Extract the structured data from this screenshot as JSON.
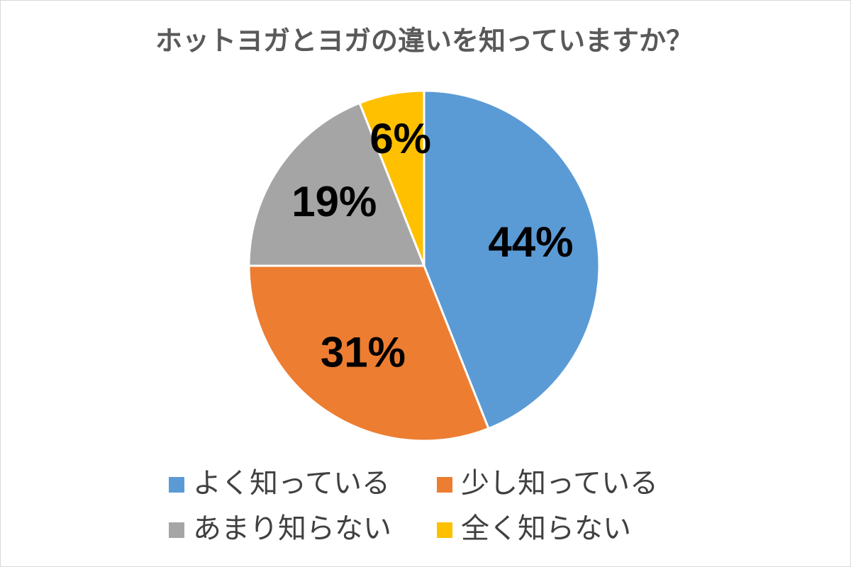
{
  "chart_data": {
    "type": "pie",
    "title": "ホットヨガとヨガの違いを知っていますか？",
    "categories": [
      "よく知っている",
      "少し知っている",
      "あまり知らない",
      "全く知らない"
    ],
    "values": [
      44,
      31,
      19,
      6
    ],
    "value_labels": [
      "44%",
      "31%",
      "19%",
      "6%"
    ],
    "colors": [
      "#5b9bd5",
      "#ed7d31",
      "#a5a5a5",
      "#ffc000"
    ]
  }
}
